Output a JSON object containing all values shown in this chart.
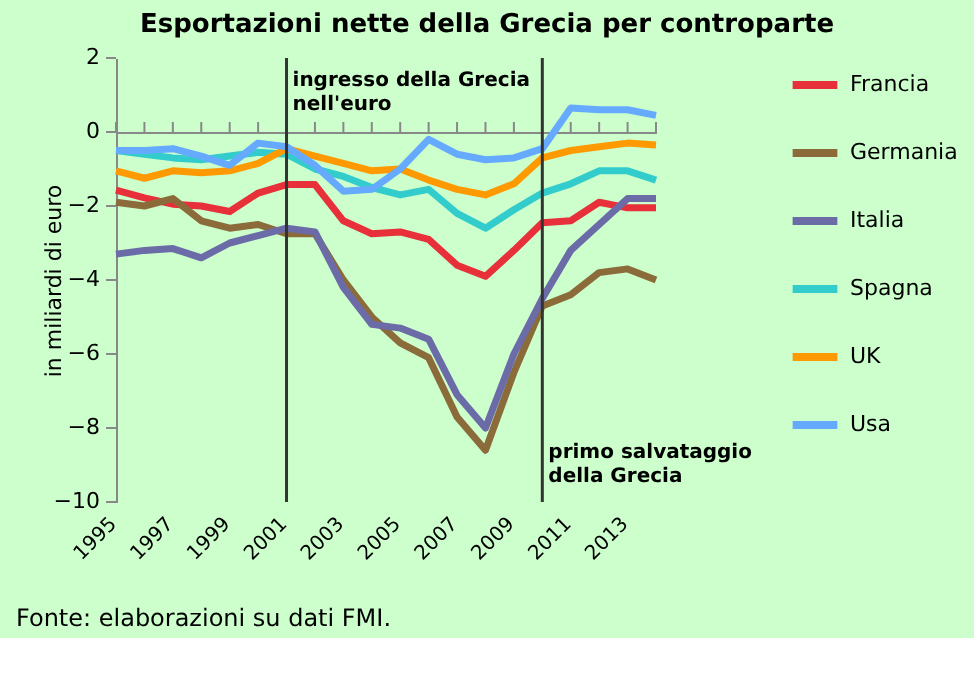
{
  "chart_data": {
    "type": "line",
    "title": "Esportazioni nette della Grecia per controparte",
    "ylabel": "in miliardi di euro",
    "x": [
      1995,
      1996,
      1997,
      1998,
      1999,
      2000,
      2001,
      2002,
      2003,
      2004,
      2005,
      2006,
      2007,
      2008,
      2009,
      2010,
      2011,
      2012,
      2013,
      2014
    ],
    "xlim": [
      1995,
      2014
    ],
    "xticks": [
      1995,
      {
        "value": 1996,
        "label": null
      },
      1997,
      {
        "value": 1998,
        "label": null
      },
      1999,
      {
        "value": 2000,
        "label": null
      },
      2001,
      {
        "value": 2002,
        "label": null
      },
      2003,
      {
        "value": 2004,
        "label": null
      },
      2005,
      {
        "value": 2006,
        "label": null
      },
      2007,
      {
        "value": 2008,
        "label": null
      },
      2009,
      {
        "value": 2010,
        "label": null
      },
      2011,
      {
        "value": 2012,
        "label": null
      },
      2013,
      {
        "value": 2014,
        "label": null
      }
    ],
    "ylim": [
      -10,
      2
    ],
    "yticks": [
      -10,
      -8,
      -6,
      -4,
      -2,
      0,
      2
    ],
    "series": [
      {
        "name": "Francia",
        "color": "#e8303a",
        "values": [
          -1.57,
          -1.78,
          -1.95,
          -2.0,
          -2.15,
          -1.65,
          -1.42,
          -1.42,
          -2.4,
          -2.75,
          -2.7,
          -2.9,
          -3.6,
          -3.9,
          -3.2,
          -2.45,
          -2.4,
          -1.9,
          -2.05,
          -2.05
        ]
      },
      {
        "name": "Germania",
        "color": "#8b6b3a",
        "values": [
          -1.9,
          -2.0,
          -1.8,
          -2.4,
          -2.6,
          -2.5,
          -2.75,
          -2.75,
          -4.0,
          -5.0,
          -5.7,
          -6.1,
          -7.7,
          -8.6,
          -6.5,
          -4.7,
          -4.4,
          -3.8,
          -3.7,
          -4.0
        ]
      },
      {
        "name": "Italia",
        "color": "#6b6ba8",
        "values": [
          -3.3,
          -3.2,
          -3.15,
          -3.4,
          -3.0,
          -2.8,
          -2.6,
          -2.7,
          -4.2,
          -5.2,
          -5.3,
          -5.6,
          -7.1,
          -8.0,
          -6.0,
          -4.5,
          -3.2,
          -2.5,
          -1.8,
          -1.8
        ]
      },
      {
        "name": "Spagna",
        "color": "#33cccc",
        "values": [
          -0.5,
          -0.6,
          -0.7,
          -0.75,
          -0.65,
          -0.55,
          -0.6,
          -1.0,
          -1.2,
          -1.5,
          -1.7,
          -1.55,
          -2.2,
          -2.6,
          -2.1,
          -1.65,
          -1.4,
          -1.05,
          -1.05,
          -1.3
        ]
      },
      {
        "name": "UK",
        "color": "#ff9900",
        "values": [
          -1.05,
          -1.25,
          -1.05,
          -1.1,
          -1.05,
          -0.85,
          -0.45,
          -0.65,
          -0.85,
          -1.05,
          -1.0,
          -1.3,
          -1.55,
          -1.7,
          -1.4,
          -0.7,
          -0.5,
          -0.4,
          -0.3,
          -0.35
        ]
      },
      {
        "name": "Usa",
        "color": "#66aaff",
        "values": [
          -0.5,
          -0.5,
          -0.45,
          -0.65,
          -0.9,
          -0.3,
          -0.4,
          -0.9,
          -1.6,
          -1.55,
          -1.0,
          -0.2,
          -0.6,
          -0.75,
          -0.7,
          -0.45,
          0.65,
          0.6,
          0.6,
          0.45
        ]
      }
    ],
    "ref_lines": [
      {
        "axis": "x",
        "value": 2001,
        "label": "ingresso della Grecia\nnell'euro",
        "color": "#333333"
      },
      {
        "axis": "x",
        "value": 2010,
        "label": "primo salvataggio\ndella Grecia",
        "color": "#333333"
      }
    ],
    "annotations": [
      "Fonte: elaborazioni su dati FMI."
    ],
    "legend": "right",
    "grid": false,
    "marker": "none",
    "line_style": "solid"
  }
}
